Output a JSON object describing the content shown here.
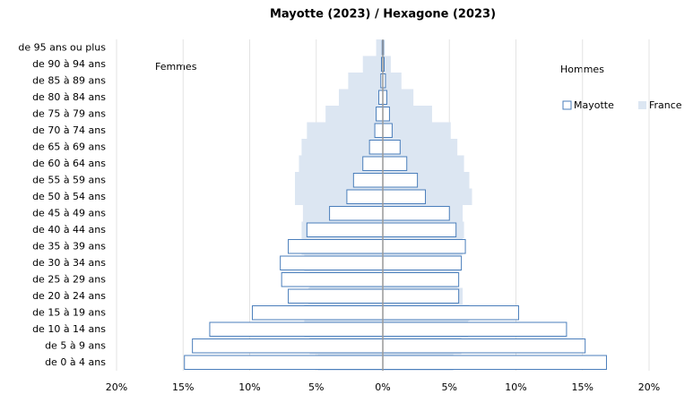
{
  "chart_data": {
    "type": "pyramid",
    "title": "Mayotte (2023) / Hexagone (2023)",
    "annotations": [
      "Femmes",
      "Hommes"
    ],
    "categories": [
      "de 95 ans ou plus",
      "de 90 à 94 ans",
      "de 85 à 89 ans",
      "de 80 à 84 ans",
      "de 75 à 79 ans",
      "de 70 à 74 ans",
      "de 65 à 69 ans",
      "de 60 à 64 ans",
      "de 55 à 59 ans",
      "de 50 à 54 ans",
      "de 45 à 49 ans",
      "de 40 à 44 ans",
      "de 35 à 39 ans",
      "de 30 à 34 ans",
      "de 25 à 29 ans",
      "de 20 à 24 ans",
      "de 15 à 19 ans",
      "de 10 à 14 ans",
      "de 5 à 9 ans",
      "de 0 à 4 ans"
    ],
    "series": [
      {
        "name": "Mayotte",
        "color": "#4a7ebb",
        "fill": "#ffffff",
        "femmes": [
          -0.05,
          -0.1,
          -0.15,
          -0.3,
          -0.5,
          -0.6,
          -1.0,
          -1.5,
          -2.2,
          -2.7,
          -4.0,
          -5.7,
          -7.1,
          -7.7,
          -7.6,
          -7.1,
          -9.8,
          -13.0,
          -14.3,
          -14.9
        ],
        "hommes": [
          0.05,
          0.1,
          0.2,
          0.3,
          0.5,
          0.7,
          1.3,
          1.8,
          2.6,
          3.2,
          5.0,
          5.5,
          6.2,
          5.9,
          5.7,
          5.7,
          10.2,
          13.8,
          15.2,
          16.8
        ]
      },
      {
        "name": "France",
        "color": "#dce6f2",
        "fill": "#dce6f2",
        "femmes": [
          -0.5,
          -1.5,
          -2.6,
          -3.3,
          -4.3,
          -5.7,
          -6.1,
          -6.3,
          -6.6,
          -6.6,
          -6.0,
          -6.1,
          -6.1,
          -5.9,
          -5.5,
          -5.6,
          -5.9,
          -5.9,
          -5.5,
          -4.9
        ],
        "hommes": [
          0.15,
          0.6,
          1.4,
          2.3,
          3.7,
          5.1,
          5.6,
          6.1,
          6.5,
          6.7,
          6.0,
          6.1,
          6.0,
          5.9,
          5.6,
          6.0,
          6.5,
          6.4,
          5.9,
          5.3
        ]
      }
    ],
    "xlim": [
      -20,
      20
    ],
    "xticks": [
      {
        "value": -20,
        "label": "20%"
      },
      {
        "value": -15,
        "label": "15%"
      },
      {
        "value": -10,
        "label": "10%"
      },
      {
        "value": -5,
        "label": "5%"
      },
      {
        "value": 0,
        "label": "0%"
      },
      {
        "value": 5,
        "label": "5%"
      },
      {
        "value": 10,
        "label": "10%"
      },
      {
        "value": 15,
        "label": "15%"
      },
      {
        "value": 20,
        "label": "20%"
      }
    ],
    "grid": true
  }
}
